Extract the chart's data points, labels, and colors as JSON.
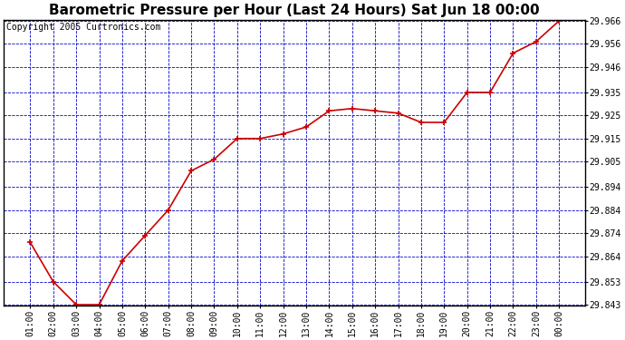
{
  "title": "Barometric Pressure per Hour (Last 24 Hours) Sat Jun 18 00:00",
  "copyright": "Copyright 2005 Curtronics.com",
  "x_labels": [
    "01:00",
    "02:00",
    "03:00",
    "04:00",
    "05:00",
    "06:00",
    "07:00",
    "08:00",
    "09:00",
    "10:00",
    "11:00",
    "12:00",
    "13:00",
    "14:00",
    "15:00",
    "16:00",
    "17:00",
    "18:00",
    "19:00",
    "20:00",
    "21:00",
    "22:00",
    "23:00",
    "00:00"
  ],
  "y_values": [
    29.87,
    29.853,
    29.843,
    29.843,
    29.862,
    29.873,
    29.884,
    29.901,
    29.906,
    29.915,
    29.915,
    29.917,
    29.92,
    29.927,
    29.928,
    29.927,
    29.926,
    29.922,
    29.922,
    29.935,
    29.935,
    29.952,
    29.957,
    29.966
  ],
  "ylim_min": 29.843,
  "ylim_max": 29.966,
  "yticks": [
    29.843,
    29.853,
    29.864,
    29.874,
    29.884,
    29.894,
    29.905,
    29.915,
    29.925,
    29.935,
    29.946,
    29.956,
    29.966
  ],
  "line_color": "#cc0000",
  "marker_color": "#cc0000",
  "fig_bg_color": "#ffffff",
  "plot_bg": "#ffffff",
  "border_color": "#000000",
  "grid_color": "#0000cc",
  "title_color": "#000000",
  "copyright_color": "#000000",
  "title_fontsize": 11,
  "copyright_fontsize": 7,
  "tick_fontsize": 7
}
